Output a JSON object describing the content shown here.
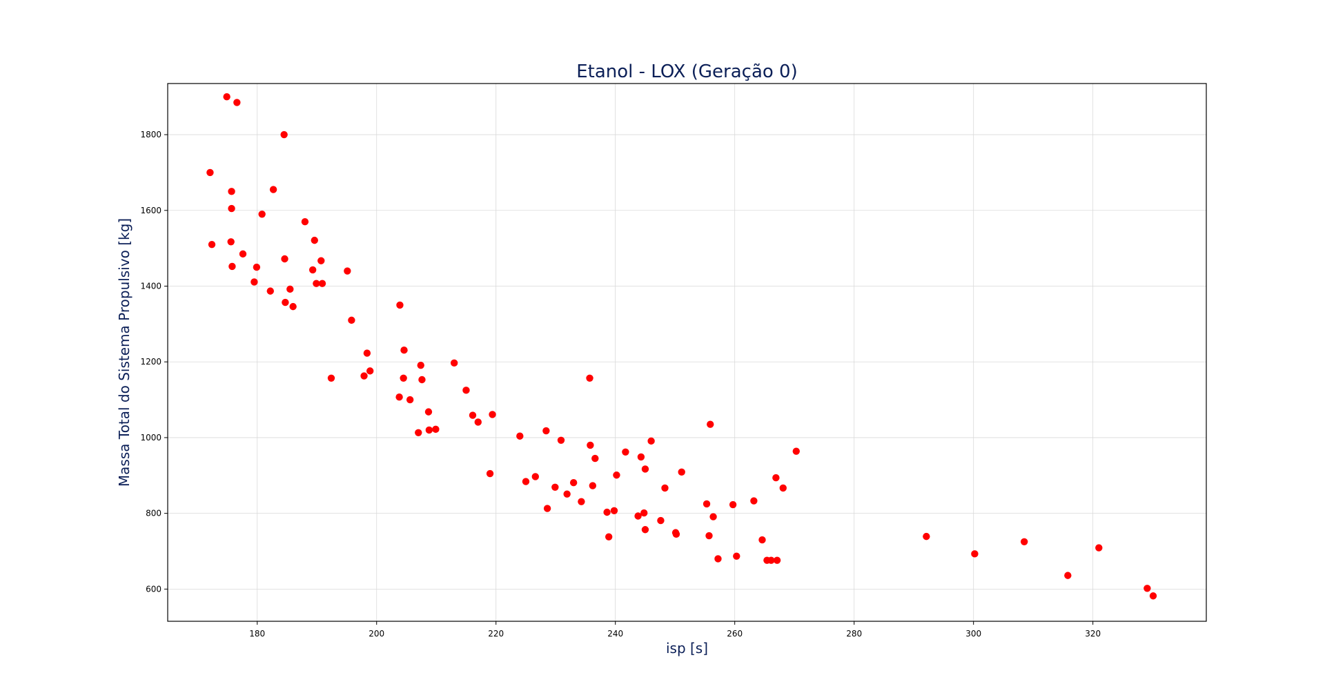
{
  "chart_data": {
    "type": "scatter",
    "title": "Etanol - LOX (Geração 0)",
    "xlabel": "isp [s]",
    "ylabel": "Massa Total do Sistema Propulsivo [kg]",
    "xlim": [
      165,
      339
    ],
    "ylim": [
      515,
      1935
    ],
    "x_ticks": [
      180,
      200,
      220,
      240,
      260,
      280,
      300,
      320
    ],
    "y_ticks": [
      600,
      800,
      1000,
      1200,
      1400,
      1600,
      1800
    ],
    "grid": true,
    "marker_color": "#ff0000",
    "points": [
      [
        172.1,
        1700
      ],
      [
        172.4,
        1510
      ],
      [
        174.9,
        1900
      ],
      [
        175.6,
        1517
      ],
      [
        175.7,
        1650
      ],
      [
        175.7,
        1605
      ],
      [
        175.8,
        1452
      ],
      [
        176.6,
        1885
      ],
      [
        177.6,
        1485
      ],
      [
        179.5,
        1411
      ],
      [
        179.9,
        1450
      ],
      [
        180.8,
        1590
      ],
      [
        182.2,
        1387
      ],
      [
        182.7,
        1655
      ],
      [
        184.5,
        1800
      ],
      [
        184.6,
        1472
      ],
      [
        184.7,
        1357
      ],
      [
        185.5,
        1392
      ],
      [
        186.0,
        1346
      ],
      [
        188.0,
        1570
      ],
      [
        189.3,
        1443
      ],
      [
        189.6,
        1521
      ],
      [
        189.9,
        1407
      ],
      [
        190.7,
        1467
      ],
      [
        190.9,
        1407
      ],
      [
        192.4,
        1157
      ],
      [
        195.1,
        1440
      ],
      [
        195.8,
        1310
      ],
      [
        197.9,
        1163
      ],
      [
        198.4,
        1223
      ],
      [
        198.9,
        1176
      ],
      [
        203.8,
        1107
      ],
      [
        203.9,
        1350
      ],
      [
        204.5,
        1157
      ],
      [
        204.6,
        1231
      ],
      [
        205.6,
        1100
      ],
      [
        207.0,
        1013
      ],
      [
        207.4,
        1191
      ],
      [
        207.6,
        1153
      ],
      [
        208.7,
        1068
      ],
      [
        208.8,
        1020
      ],
      [
        209.9,
        1022
      ],
      [
        213.0,
        1197
      ],
      [
        215.0,
        1125
      ],
      [
        216.1,
        1059
      ],
      [
        217.0,
        1041
      ],
      [
        219.0,
        905
      ],
      [
        219.4,
        1061
      ],
      [
        224.0,
        1004
      ],
      [
        225.0,
        884
      ],
      [
        226.6,
        897
      ],
      [
        228.4,
        1018
      ],
      [
        228.6,
        813
      ],
      [
        229.9,
        869
      ],
      [
        230.9,
        993
      ],
      [
        231.9,
        851
      ],
      [
        233.0,
        881
      ],
      [
        234.3,
        831
      ],
      [
        235.7,
        1157
      ],
      [
        235.8,
        980
      ],
      [
        236.2,
        873
      ],
      [
        236.6,
        945
      ],
      [
        238.6,
        803
      ],
      [
        238.9,
        738
      ],
      [
        239.8,
        807
      ],
      [
        240.2,
        901
      ],
      [
        241.7,
        962
      ],
      [
        243.8,
        793
      ],
      [
        244.3,
        949
      ],
      [
        244.8,
        801
      ],
      [
        245.0,
        757
      ],
      [
        245.0,
        917
      ],
      [
        246.0,
        991
      ],
      [
        247.6,
        781
      ],
      [
        248.3,
        867
      ],
      [
        250.1,
        749
      ],
      [
        250.2,
        745
      ],
      [
        251.1,
        909
      ],
      [
        255.3,
        825
      ],
      [
        255.7,
        741
      ],
      [
        255.9,
        1035
      ],
      [
        256.4,
        791
      ],
      [
        257.2,
        680
      ],
      [
        259.7,
        823
      ],
      [
        260.3,
        687
      ],
      [
        263.2,
        833
      ],
      [
        264.6,
        730
      ],
      [
        265.4,
        676
      ],
      [
        266.1,
        676
      ],
      [
        266.9,
        894
      ],
      [
        267.1,
        676
      ],
      [
        268.1,
        867
      ],
      [
        270.3,
        964
      ],
      [
        292.1,
        739
      ],
      [
        300.2,
        693
      ],
      [
        308.5,
        725
      ],
      [
        315.8,
        636
      ],
      [
        321.0,
        709
      ],
      [
        329.1,
        602
      ],
      [
        330.1,
        582
      ]
    ]
  }
}
